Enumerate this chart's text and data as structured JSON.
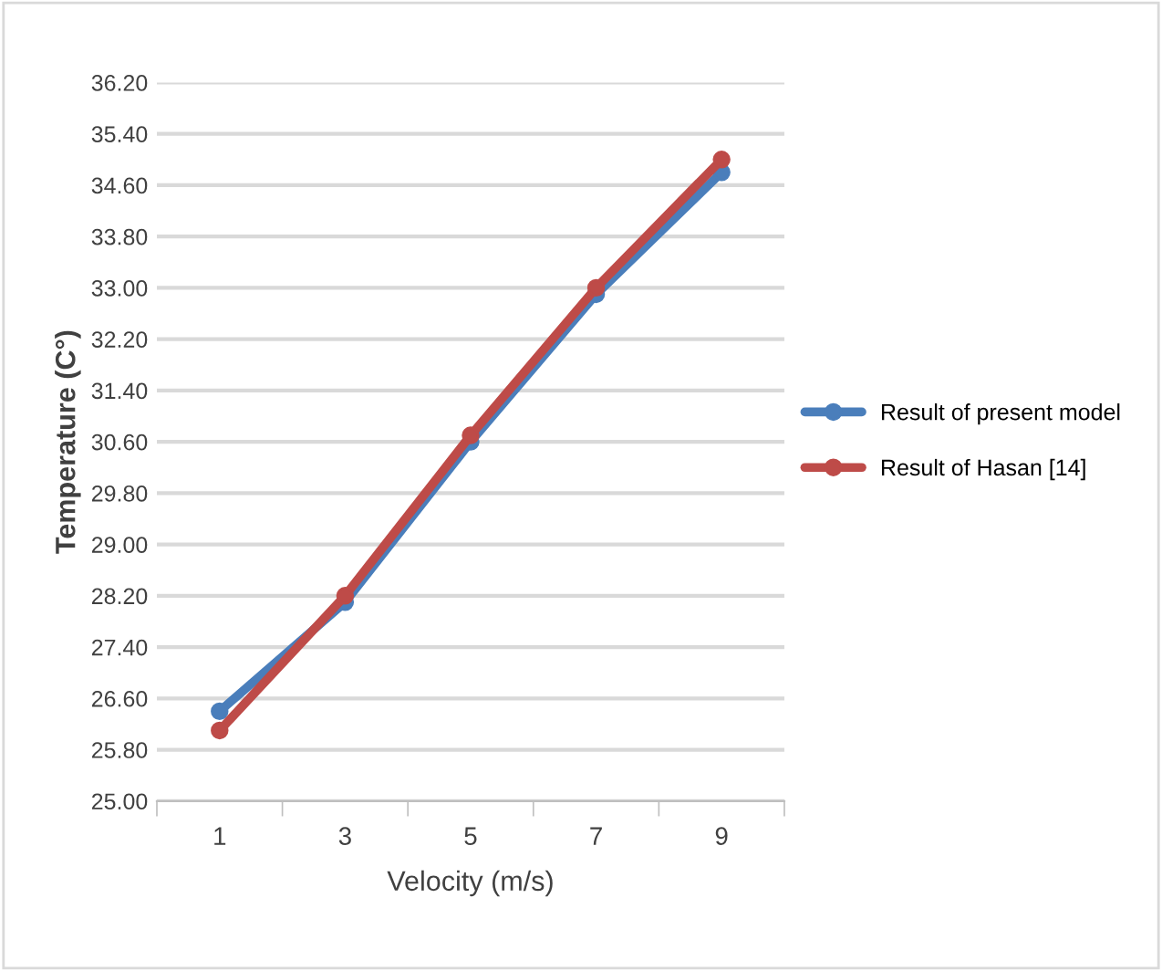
{
  "chart_data": {
    "type": "line",
    "xlabel": "Velocity (m/s)",
    "ylabel": "Temperature (C°)",
    "categories": [
      "1",
      "3",
      "5",
      "7",
      "9"
    ],
    "series": [
      {
        "name": "Result of present model",
        "color": "#4a7ebb",
        "values": [
          26.4,
          28.1,
          30.6,
          32.9,
          34.8
        ]
      },
      {
        "name": "Result of Hasan [14]",
        "color": "#be4b48",
        "values": [
          26.1,
          28.2,
          30.7,
          33.0,
          35.0
        ]
      }
    ],
    "ylim": [
      25.0,
      36.2
    ],
    "yticks": [
      {
        "value": 25.0,
        "label": "25.00"
      },
      {
        "value": 25.8,
        "label": "25.80"
      },
      {
        "value": 26.6,
        "label": "26.60"
      },
      {
        "value": 27.4,
        "label": "27.40"
      },
      {
        "value": 28.2,
        "label": "28.20"
      },
      {
        "value": 29.0,
        "label": "29.00"
      },
      {
        "value": 29.8,
        "label": "29.80"
      },
      {
        "value": 30.6,
        "label": "30.60"
      },
      {
        "value": 31.4,
        "label": "31.40"
      },
      {
        "value": 32.2,
        "label": "32.20"
      },
      {
        "value": 33.0,
        "label": "33.00"
      },
      {
        "value": 33.8,
        "label": "33.80"
      },
      {
        "value": 34.6,
        "label": "34.60"
      },
      {
        "value": 35.4,
        "label": "35.40"
      },
      {
        "value": 36.2,
        "label": "36.20"
      }
    ],
    "grid": "y",
    "legend": "right",
    "marker": "circle",
    "line_style": "solid"
  }
}
